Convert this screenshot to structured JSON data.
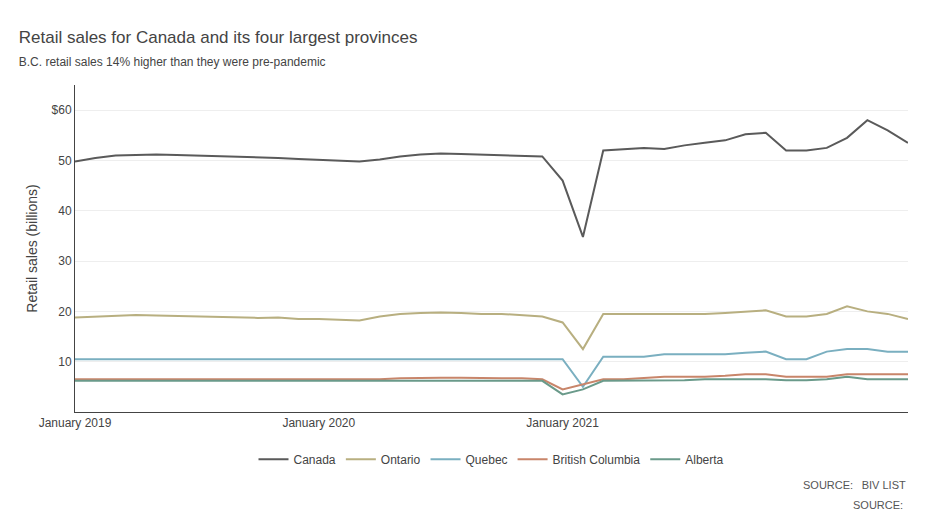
{
  "chart_data": {
    "type": "line",
    "title": "Retail sales for Canada and its four largest provinces",
    "subtitle": "B.C. retail sales 14% higher than they were pre-pandemic",
    "ylabel": "Retail sales (billions)",
    "annotations": [
      "SOURCE:  BIV LIST",
      "SOURCE: "
    ],
    "categories": [
      "January 2019",
      null,
      null,
      null,
      null,
      null,
      null,
      null,
      null,
      null,
      null,
      null,
      "January 2020",
      null,
      null,
      null,
      null,
      null,
      null,
      null,
      null,
      null,
      null,
      null,
      "January 2021",
      null,
      null,
      null,
      null,
      null,
      null,
      null,
      null,
      null,
      null,
      null,
      null,
      null,
      null,
      null,
      null,
      null
    ],
    "ylim": [
      0,
      65
    ],
    "yticks": [
      10,
      20,
      30,
      40,
      50,
      {
        "value": 60,
        "label": "$60"
      }
    ],
    "grid": true,
    "legend": "bottom",
    "series": [
      {
        "name": "Canada",
        "color": "#5a5a5a",
        "values": [
          49.8,
          50.5,
          51.0,
          51.1,
          51.2,
          51.1,
          51.0,
          50.8,
          50.7,
          50.6,
          50.5,
          50.3,
          50.1,
          50.0,
          49.8,
          50.2,
          50.8,
          51.2,
          51.4,
          51.3,
          51.2,
          51.1,
          50.9,
          50.8,
          46.0,
          34.8,
          52.0,
          52.3,
          52.5,
          52.3,
          53.0,
          53.5,
          54.0,
          55.2,
          55.5,
          52.0,
          52.0,
          52.5,
          54.5,
          58.0,
          56.0,
          53.5
        ]
      },
      {
        "name": "Ontario",
        "color": "#b8af80",
        "values": [
          18.8,
          19.0,
          19.2,
          19.3,
          19.2,
          19.1,
          19.0,
          18.9,
          18.8,
          18.7,
          18.8,
          18.5,
          18.5,
          18.3,
          18.2,
          19.0,
          19.5,
          19.7,
          19.8,
          19.7,
          19.5,
          19.5,
          19.3,
          19.0,
          17.8,
          12.5,
          19.5,
          19.5,
          19.5,
          19.5,
          19.5,
          19.5,
          19.7,
          20.0,
          20.2,
          19.0,
          19.0,
          19.5,
          21.0,
          20.0,
          19.5,
          18.5
        ]
      },
      {
        "name": "Quebec",
        "color": "#7aafc0",
        "values": [
          10.5,
          10.5,
          10.5,
          10.5,
          10.5,
          10.5,
          10.5,
          10.5,
          10.5,
          10.5,
          10.5,
          10.5,
          10.5,
          10.5,
          10.5,
          10.5,
          10.5,
          10.5,
          10.5,
          10.5,
          10.5,
          10.5,
          10.5,
          10.5,
          10.5,
          5.0,
          11.0,
          11.0,
          11.0,
          11.5,
          11.5,
          11.5,
          11.5,
          11.8,
          12.0,
          10.5,
          10.5,
          12.0,
          12.5,
          12.5,
          12.0,
          12.0
        ]
      },
      {
        "name": "British Columbia",
        "color": "#c8856a",
        "values": [
          6.5,
          6.5,
          6.5,
          6.5,
          6.5,
          6.5,
          6.5,
          6.5,
          6.5,
          6.5,
          6.5,
          6.5,
          6.5,
          6.5,
          6.5,
          6.5,
          6.7,
          6.8,
          6.8,
          6.8,
          6.7,
          6.7,
          6.7,
          6.5,
          4.5,
          5.5,
          6.5,
          6.5,
          6.7,
          7.0,
          7.0,
          7.0,
          7.2,
          7.5,
          7.5,
          7.0,
          7.0,
          7.0,
          7.5,
          7.5,
          7.5,
          7.5
        ]
      },
      {
        "name": "Alberta",
        "color": "#6a9a8a",
        "values": [
          6.2,
          6.2,
          6.2,
          6.2,
          6.2,
          6.2,
          6.2,
          6.2,
          6.2,
          6.2,
          6.2,
          6.2,
          6.2,
          6.2,
          6.2,
          6.2,
          6.2,
          6.2,
          6.2,
          6.2,
          6.2,
          6.2,
          6.2,
          6.2,
          3.5,
          4.5,
          6.2,
          6.2,
          6.2,
          6.2,
          6.3,
          6.5,
          6.5,
          6.5,
          6.5,
          6.3,
          6.3,
          6.5,
          7.0,
          6.5,
          6.5,
          6.5
        ]
      }
    ]
  }
}
